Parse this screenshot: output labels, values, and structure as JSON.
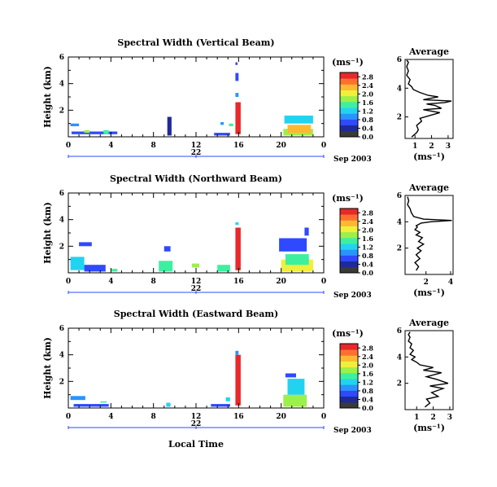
{
  "chart_data": [
    {
      "type": "heatmap",
      "title": "Spectral Width (Vertical Beam)",
      "ylabel": "Height (km)",
      "x_ticks": [
        "0",
        "4",
        "8",
        "12",
        "16",
        "20",
        "0"
      ],
      "y_ticks": [
        "2",
        "4",
        "6"
      ],
      "ylim": [
        0,
        6
      ],
      "day_label": "22",
      "month_label": "Sep 2003",
      "colorbar": {
        "unit": "(ms⁻¹)",
        "ticks": [
          "0.0",
          "0.4",
          "0.8",
          "1.2",
          "1.6",
          "2.0",
          "2.4",
          "2.8"
        ],
        "range": [
          0,
          3.0
        ],
        "colors": [
          "#3a3a3a",
          "#1e2a9c",
          "#2f49ff",
          "#2a93ff",
          "#22d3f0",
          "#3cf0a0",
          "#9cf04a",
          "#f0f03a",
          "#ffb830",
          "#ff7030",
          "#e8282a"
        ]
      },
      "series": [
        {
          "name": "Spectral width (ms⁻¹)",
          "blocks": [
            {
              "x": [
                0.2,
                1.0
              ],
              "y": [
                0.8,
                1.0
              ],
              "v": 1.0
            },
            {
              "x": [
                0.3,
                4.6
              ],
              "y": [
                0.2,
                0.4
              ],
              "v": 0.6
            },
            {
              "x": [
                1.5,
                2.0
              ],
              "y": [
                0.3,
                0.5
              ],
              "v": 1.8
            },
            {
              "x": [
                3.3,
                3.8
              ],
              "y": [
                0.2,
                0.5
              ],
              "v": 1.4
            },
            {
              "x": [
                9.3,
                9.7
              ],
              "y": [
                0.1,
                1.5
              ],
              "v": 0.5
            },
            {
              "x": [
                13.7,
                15.2
              ],
              "y": [
                0.1,
                0.3
              ],
              "v": 0.6
            },
            {
              "x": [
                14.3,
                14.6
              ],
              "y": [
                0.9,
                1.1
              ],
              "v": 1.0
            },
            {
              "x": [
                15.1,
                15.5
              ],
              "y": [
                0.8,
                1.0
              ],
              "v": 1.5
            },
            {
              "x": [
                15.7,
                16.2
              ],
              "y": [
                0.2,
                2.6
              ],
              "v": 2.8
            },
            {
              "x": [
                15.7,
                16.0
              ],
              "y": [
                3.0,
                3.3
              ],
              "v": 1.0
            },
            {
              "x": [
                15.7,
                16.0
              ],
              "y": [
                4.2,
                4.8
              ],
              "v": 0.8
            },
            {
              "x": [
                15.7,
                15.9
              ],
              "y": [
                5.4,
                5.6
              ],
              "v": 0.6
            },
            {
              "x": [
                20.2,
                23.0
              ],
              "y": [
                0.1,
                0.6
              ],
              "v": 1.8
            },
            {
              "x": [
                20.6,
                22.8
              ],
              "y": [
                0.3,
                0.9
              ],
              "v": 2.3
            },
            {
              "x": [
                20.3,
                23.0
              ],
              "y": [
                1.0,
                1.6
              ],
              "v": 1.2
            }
          ]
        }
      ],
      "average": {
        "title": "Average",
        "xlabel": "(ms⁻¹)",
        "x_ticks": [
          "1",
          "2",
          "3"
        ],
        "xlim": [
          0.4,
          3.3
        ],
        "y_ticks": [
          "2",
          "4",
          "6"
        ],
        "ylim": [
          0.5,
          6
        ],
        "x": [
          0.8,
          1.1,
          1.2,
          1.1,
          1.4,
          1.3,
          1.9,
          2.5,
          1.5,
          2.6,
          2.2,
          1.7,
          2.8,
          3.2,
          1.5,
          2.4,
          1.8,
          1.3,
          0.9,
          0.8,
          0.6,
          0.7,
          0.5,
          0.6,
          0.5,
          0.6,
          0.5
        ],
        "y": [
          0.6,
          0.9,
          1.1,
          1.4,
          1.7,
          1.9,
          2.1,
          2.3,
          2.5,
          2.6,
          2.8,
          2.9,
          3.0,
          3.1,
          3.2,
          3.4,
          3.5,
          3.7,
          3.9,
          4.1,
          4.3,
          4.6,
          4.9,
          5.2,
          5.5,
          5.8,
          5.95
        ]
      }
    },
    {
      "type": "heatmap",
      "title": "Spectral Width (Northward Beam)",
      "ylabel": "Height (km)",
      "x_ticks": [
        "0",
        "4",
        "8",
        "12",
        "16",
        "20",
        "0"
      ],
      "y_ticks": [
        "2",
        "4",
        "6"
      ],
      "ylim": [
        0,
        6
      ],
      "day_label": "22",
      "month_label": "Sep 2003",
      "colorbar": {
        "unit": "(ms⁻¹)",
        "ticks": [
          "0.0",
          "0.4",
          "0.8",
          "1.2",
          "1.6",
          "2.0",
          "2.4",
          "2.8"
        ],
        "range": [
          0,
          3.0
        ],
        "colors": [
          "#3a3a3a",
          "#1e2a9c",
          "#2f49ff",
          "#2a93ff",
          "#22d3f0",
          "#3cf0a0",
          "#9cf04a",
          "#f0f03a",
          "#ffb830",
          "#ff7030",
          "#e8282a"
        ]
      },
      "series": [
        {
          "name": "Spectral width (ms⁻¹)",
          "blocks": [
            {
              "x": [
                0.2,
                1.5
              ],
              "y": [
                0.2,
                1.2
              ],
              "v": 1.1
            },
            {
              "x": [
                1.5,
                3.5
              ],
              "y": [
                0.1,
                0.6
              ],
              "v": 0.6
            },
            {
              "x": [
                1.0,
                2.2
              ],
              "y": [
                2.0,
                2.3
              ],
              "v": 0.8
            },
            {
              "x": [
                4.0,
                4.6
              ],
              "y": [
                0.1,
                0.3
              ],
              "v": 1.5
            },
            {
              "x": [
                8.5,
                9.8
              ],
              "y": [
                0.1,
                0.9
              ],
              "v": 1.4
            },
            {
              "x": [
                9.0,
                9.6
              ],
              "y": [
                1.6,
                2.0
              ],
              "v": 0.6
            },
            {
              "x": [
                11.6,
                12.3
              ],
              "y": [
                0.4,
                0.7
              ],
              "v": 1.8
            },
            {
              "x": [
                14.0,
                15.2
              ],
              "y": [
                0.1,
                0.6
              ],
              "v": 1.4
            },
            {
              "x": [
                15.7,
                16.2
              ],
              "y": [
                0.2,
                3.4
              ],
              "v": 2.8
            },
            {
              "x": [
                15.7,
                16.0
              ],
              "y": [
                3.6,
                3.8
              ],
              "v": 1.2
            },
            {
              "x": [
                20.0,
                23.0
              ],
              "y": [
                0.1,
                1.0
              ],
              "v": 2.0
            },
            {
              "x": [
                20.4,
                22.6
              ],
              "y": [
                0.6,
                1.4
              ],
              "v": 1.6
            },
            {
              "x": [
                19.8,
                22.4
              ],
              "y": [
                1.6,
                2.6
              ],
              "v": 0.7
            },
            {
              "x": [
                22.2,
                22.6
              ],
              "y": [
                2.8,
                3.4
              ],
              "v": 0.6
            }
          ]
        }
      ],
      "average": {
        "title": "Average",
        "xlabel": "(ms⁻¹)",
        "x_ticks": [
          "2",
          "4"
        ],
        "xlim": [
          0.3,
          4.2
        ],
        "y_ticks": [
          "2",
          "4",
          "6"
        ],
        "ylim": [
          0,
          6
        ],
        "x": [
          1.2,
          1.4,
          1.1,
          1.5,
          1.2,
          1.6,
          1.3,
          1.8,
          1.4,
          1.7,
          1.2,
          1.5,
          1.1,
          1.3,
          1.2,
          1.4,
          1.6,
          2.4,
          4.1,
          1.8,
          1.0,
          0.8,
          0.7,
          0.5,
          0.6,
          0.5
        ],
        "y": [
          0.3,
          0.6,
          0.9,
          1.2,
          1.5,
          1.8,
          2.0,
          2.3,
          2.5,
          2.8,
          3.0,
          3.2,
          3.4,
          3.6,
          3.7,
          3.8,
          3.9,
          4.0,
          4.1,
          4.2,
          4.4,
          4.7,
          5.0,
          5.3,
          5.6,
          5.9
        ]
      }
    },
    {
      "type": "heatmap",
      "title": "Spectral Width (Eastward Beam)",
      "ylabel": "Height (km)",
      "xlabel": "Local Time",
      "x_ticks": [
        "0",
        "4",
        "8",
        "12",
        "16",
        "20",
        "0"
      ],
      "y_ticks": [
        "2",
        "4",
        "6"
      ],
      "ylim": [
        0,
        6
      ],
      "day_label": "22",
      "month_label": "Sep 2003",
      "colorbar": {
        "unit": "(ms⁻¹)",
        "ticks": [
          "0.0",
          "0.4",
          "0.8",
          "1.2",
          "1.6",
          "2.0",
          "2.4",
          "2.8"
        ],
        "range": [
          0,
          3.0
        ],
        "colors": [
          "#3a3a3a",
          "#1e2a9c",
          "#2f49ff",
          "#2a93ff",
          "#22d3f0",
          "#3cf0a0",
          "#9cf04a",
          "#f0f03a",
          "#ffb830",
          "#ff7030",
          "#e8282a"
        ]
      },
      "series": [
        {
          "name": "Spectral width (ms⁻¹)",
          "blocks": [
            {
              "x": [
                0.2,
                1.6
              ],
              "y": [
                0.6,
                0.9
              ],
              "v": 1.0
            },
            {
              "x": [
                0.5,
                3.8
              ],
              "y": [
                0.1,
                0.3
              ],
              "v": 0.7
            },
            {
              "x": [
                3.0,
                3.6
              ],
              "y": [
                0.4,
                0.5
              ],
              "v": 1.6
            },
            {
              "x": [
                9.2,
                9.6
              ],
              "y": [
                0.1,
                0.4
              ],
              "v": 1.3
            },
            {
              "x": [
                13.4,
                15.2
              ],
              "y": [
                0.1,
                0.3
              ],
              "v": 0.6
            },
            {
              "x": [
                14.8,
                15.2
              ],
              "y": [
                0.5,
                0.8
              ],
              "v": 1.2
            },
            {
              "x": [
                15.7,
                16.2
              ],
              "y": [
                0.2,
                4.0
              ],
              "v": 2.8
            },
            {
              "x": [
                15.7,
                16.0
              ],
              "y": [
                4.0,
                4.3
              ],
              "v": 0.9
            },
            {
              "x": [
                20.2,
                22.4
              ],
              "y": [
                0.1,
                1.0
              ],
              "v": 1.7
            },
            {
              "x": [
                20.6,
                22.2
              ],
              "y": [
                1.0,
                2.2
              ],
              "v": 1.1
            },
            {
              "x": [
                20.4,
                21.4
              ],
              "y": [
                2.3,
                2.6
              ],
              "v": 0.6
            }
          ]
        }
      ],
      "average": {
        "title": "Average",
        "xlabel": "(ms⁻¹)",
        "x_ticks": [
          "1",
          "2",
          "3"
        ],
        "xlim": [
          0.3,
          3.2
        ],
        "y_ticks": [
          "2",
          "4",
          "6"
        ],
        "ylim": [
          0,
          6
        ],
        "x": [
          1.5,
          1.8,
          1.6,
          2.3,
          1.9,
          2.6,
          1.8,
          2.9,
          2.2,
          1.6,
          2.5,
          1.4,
          2.0,
          1.2,
          1.0,
          0.7,
          0.9,
          0.6,
          0.8,
          0.6,
          0.7,
          0.5,
          0.6,
          0.5,
          0.6
        ],
        "y": [
          0.2,
          0.5,
          0.8,
          1.0,
          1.3,
          1.6,
          1.8,
          2.0,
          2.3,
          2.5,
          2.8,
          3.0,
          3.2,
          3.4,
          3.6,
          3.8,
          4.0,
          4.2,
          4.5,
          4.7,
          5.0,
          5.2,
          5.5,
          5.7,
          5.9
        ]
      }
    }
  ]
}
